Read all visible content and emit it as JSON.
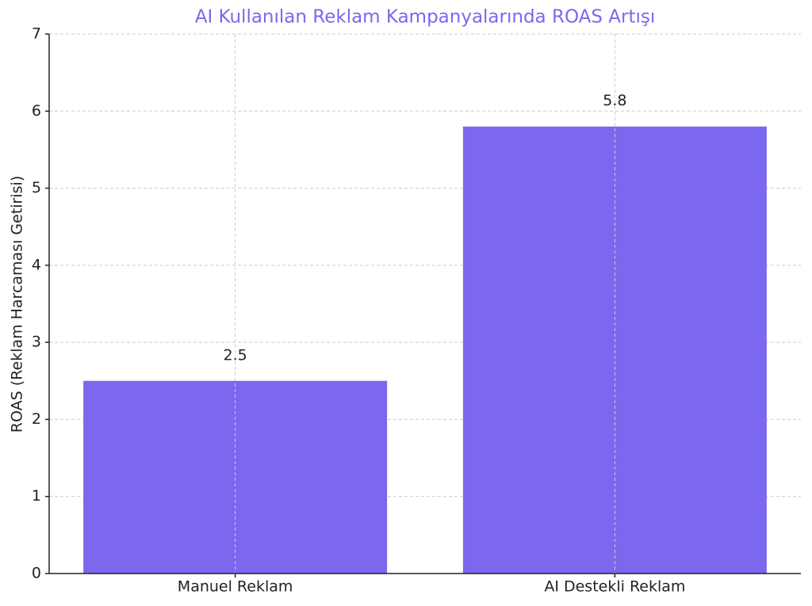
{
  "chart_data": {
    "type": "bar",
    "title": "AI Kullanılan Reklam Kampanyalarında ROAS Artışı",
    "title_color": "#7b68ee",
    "y_label": "ROAS (Reklam Harcaması Getirisi)",
    "categories": [
      "Manuel Reklam",
      "AI Destekli Reklam"
    ],
    "values": [
      2.5,
      5.8
    ],
    "color": "#7b68ee",
    "ylim": [
      0,
      7
    ],
    "yticks": [
      0,
      1,
      2,
      3,
      4,
      5,
      6,
      7
    ],
    "grid": true
  }
}
